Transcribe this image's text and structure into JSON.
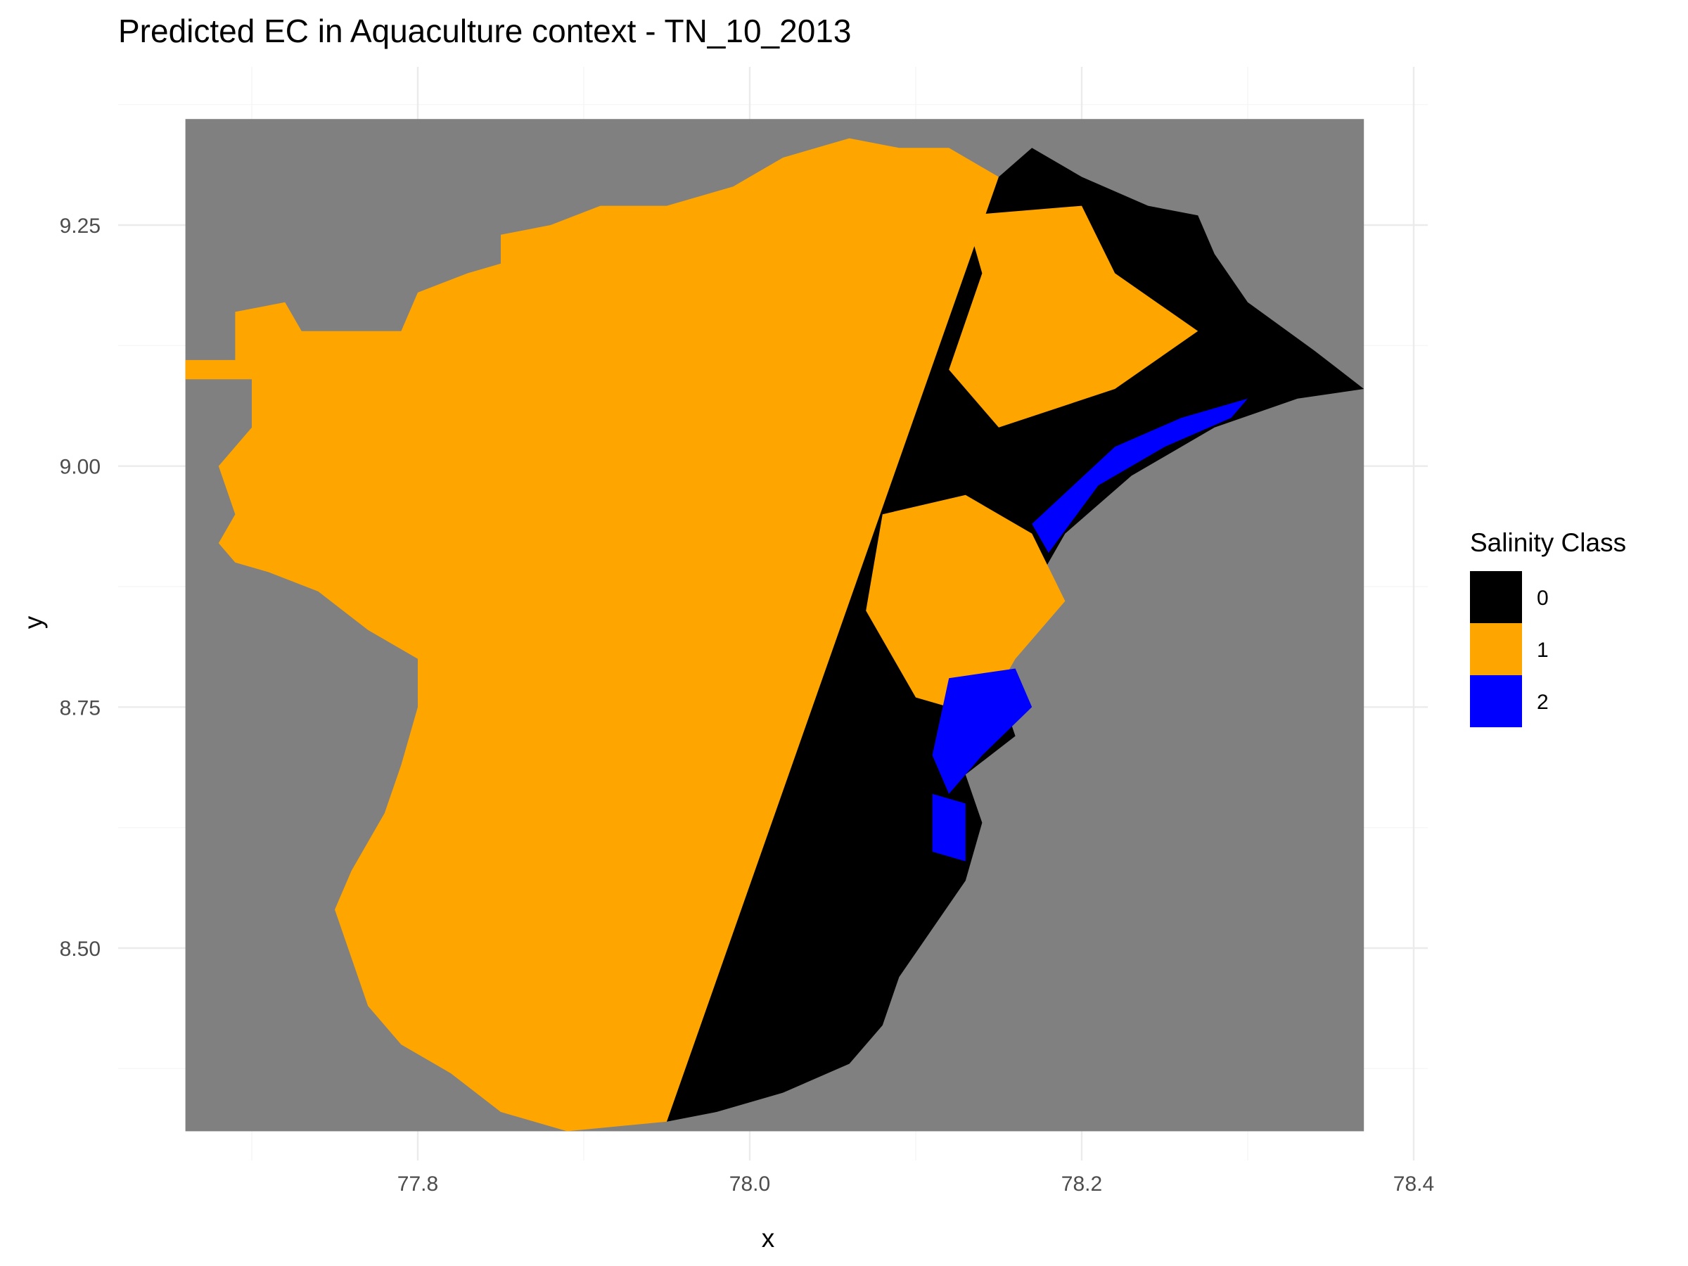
{
  "chart_data": {
    "type": "heatmap",
    "subtype": "raster-map",
    "title": "Predicted EC in Aquaculture context - TN_10_2013",
    "xlabel": "x",
    "ylabel": "y",
    "xlim": [
      77.66,
      78.37
    ],
    "ylim": [
      8.31,
      9.36
    ],
    "raster_extent": {
      "x": [
        77.66,
        78.37
      ],
      "y": [
        8.31,
        9.36
      ]
    },
    "background_color": "#808080",
    "x_ticks": [
      {
        "value": 77.8,
        "label": "77.8"
      },
      {
        "value": 78.0,
        "label": "78.0"
      },
      {
        "value": 78.2,
        "label": "78.2"
      },
      {
        "value": 78.4,
        "label": "78.4"
      }
    ],
    "x_minor_ticks": [
      77.7,
      77.9,
      78.1,
      78.3
    ],
    "y_ticks": [
      {
        "value": 8.5,
        "label": "8.50"
      },
      {
        "value": 8.75,
        "label": "8.75"
      },
      {
        "value": 9.0,
        "label": "9.00"
      },
      {
        "value": 9.25,
        "label": "9.25"
      }
    ],
    "y_minor_ticks": [
      8.375,
      8.625,
      8.875,
      9.125,
      9.375
    ],
    "grid": true,
    "legend": {
      "title": "Salinity Class",
      "position": "right",
      "entries": [
        {
          "label": "0",
          "color": "#000000"
        },
        {
          "label": "1",
          "color": "#FFA500"
        },
        {
          "label": "2",
          "color": "#0000FF"
        }
      ]
    },
    "classes": [
      {
        "value": 0,
        "color": "#000000"
      },
      {
        "value": 1,
        "color": "#FFA500"
      },
      {
        "value": 2,
        "color": "#0000FF"
      }
    ],
    "regions": [
      {
        "name": "western-zone",
        "class": 1,
        "polygon": [
          [
            77.66,
            9.11
          ],
          [
            77.69,
            9.11
          ],
          [
            77.69,
            9.16
          ],
          [
            77.72,
            9.17
          ],
          [
            77.73,
            9.14
          ],
          [
            77.79,
            9.14
          ],
          [
            77.8,
            9.18
          ],
          [
            77.83,
            9.2
          ],
          [
            77.85,
            9.21
          ],
          [
            77.85,
            9.24
          ],
          [
            77.88,
            9.25
          ],
          [
            77.91,
            9.27
          ],
          [
            77.95,
            9.27
          ],
          [
            77.99,
            9.29
          ],
          [
            78.02,
            9.32
          ],
          [
            78.06,
            9.34
          ],
          [
            78.09,
            9.33
          ],
          [
            78.12,
            9.33
          ],
          [
            78.15,
            9.3
          ],
          [
            77.95,
            8.32
          ],
          [
            77.89,
            8.31
          ],
          [
            77.85,
            8.33
          ],
          [
            77.82,
            8.37
          ],
          [
            77.79,
            8.4
          ],
          [
            77.77,
            8.44
          ],
          [
            77.76,
            8.49
          ],
          [
            77.75,
            8.54
          ],
          [
            77.76,
            8.58
          ],
          [
            77.78,
            8.64
          ],
          [
            77.79,
            8.69
          ],
          [
            77.8,
            8.75
          ],
          [
            77.8,
            8.8
          ],
          [
            77.77,
            8.83
          ],
          [
            77.74,
            8.87
          ],
          [
            77.71,
            8.89
          ],
          [
            77.69,
            8.9
          ],
          [
            77.68,
            8.92
          ],
          [
            77.69,
            8.95
          ],
          [
            77.68,
            9.0
          ],
          [
            77.7,
            9.04
          ],
          [
            77.7,
            9.09
          ],
          [
            77.66,
            9.09
          ]
        ]
      },
      {
        "name": "eastern-coastal-zone",
        "class": 0,
        "polygon": [
          [
            78.15,
            9.3
          ],
          [
            78.17,
            9.33
          ],
          [
            78.2,
            9.3
          ],
          [
            78.24,
            9.27
          ],
          [
            78.27,
            9.26
          ],
          [
            78.28,
            9.22
          ],
          [
            78.3,
            9.17
          ],
          [
            78.34,
            9.12
          ],
          [
            78.37,
            9.08
          ],
          [
            78.33,
            9.07
          ],
          [
            78.28,
            9.04
          ],
          [
            78.23,
            8.99
          ],
          [
            78.19,
            8.93
          ],
          [
            78.17,
            8.87
          ],
          [
            78.16,
            8.81
          ],
          [
            78.15,
            8.77
          ],
          [
            78.16,
            8.72
          ],
          [
            78.13,
            8.68
          ],
          [
            78.14,
            8.63
          ],
          [
            78.13,
            8.57
          ],
          [
            78.11,
            8.52
          ],
          [
            78.09,
            8.47
          ],
          [
            78.08,
            8.42
          ],
          [
            78.06,
            8.38
          ],
          [
            78.02,
            8.35
          ],
          [
            77.98,
            8.33
          ],
          [
            77.95,
            8.32
          ]
        ]
      },
      {
        "name": "east-zone-north-patches",
        "class": 1,
        "polygon": [
          [
            78.13,
            9.26
          ],
          [
            78.2,
            9.27
          ],
          [
            78.22,
            9.2
          ],
          [
            78.27,
            9.14
          ],
          [
            78.22,
            9.08
          ],
          [
            78.15,
            9.04
          ],
          [
            78.12,
            9.1
          ],
          [
            78.14,
            9.2
          ]
        ]
      },
      {
        "name": "east-zone-mid-patches",
        "class": 1,
        "polygon": [
          [
            78.08,
            8.95
          ],
          [
            78.13,
            8.97
          ],
          [
            78.17,
            8.93
          ],
          [
            78.19,
            8.86
          ],
          [
            78.16,
            8.8
          ],
          [
            78.14,
            8.74
          ],
          [
            78.1,
            8.76
          ],
          [
            78.07,
            8.85
          ]
        ]
      },
      {
        "name": "east-zone-coastal-blue",
        "class": 2,
        "polygon": [
          [
            78.22,
            9.02
          ],
          [
            78.26,
            9.05
          ],
          [
            78.3,
            9.07
          ],
          [
            78.29,
            9.05
          ],
          [
            78.25,
            9.02
          ],
          [
            78.21,
            8.98
          ],
          [
            78.18,
            8.91
          ],
          [
            78.17,
            8.94
          ]
        ]
      },
      {
        "name": "east-zone-bay-blue",
        "class": 2,
        "polygon": [
          [
            78.12,
            8.78
          ],
          [
            78.16,
            8.79
          ],
          [
            78.17,
            8.75
          ],
          [
            78.14,
            8.7
          ],
          [
            78.12,
            8.66
          ],
          [
            78.11,
            8.7
          ]
        ]
      },
      {
        "name": "east-zone-south-blue",
        "class": 2,
        "polygon": [
          [
            78.11,
            8.66
          ],
          [
            78.13,
            8.65
          ],
          [
            78.13,
            8.59
          ],
          [
            78.11,
            8.6
          ]
        ]
      }
    ]
  }
}
